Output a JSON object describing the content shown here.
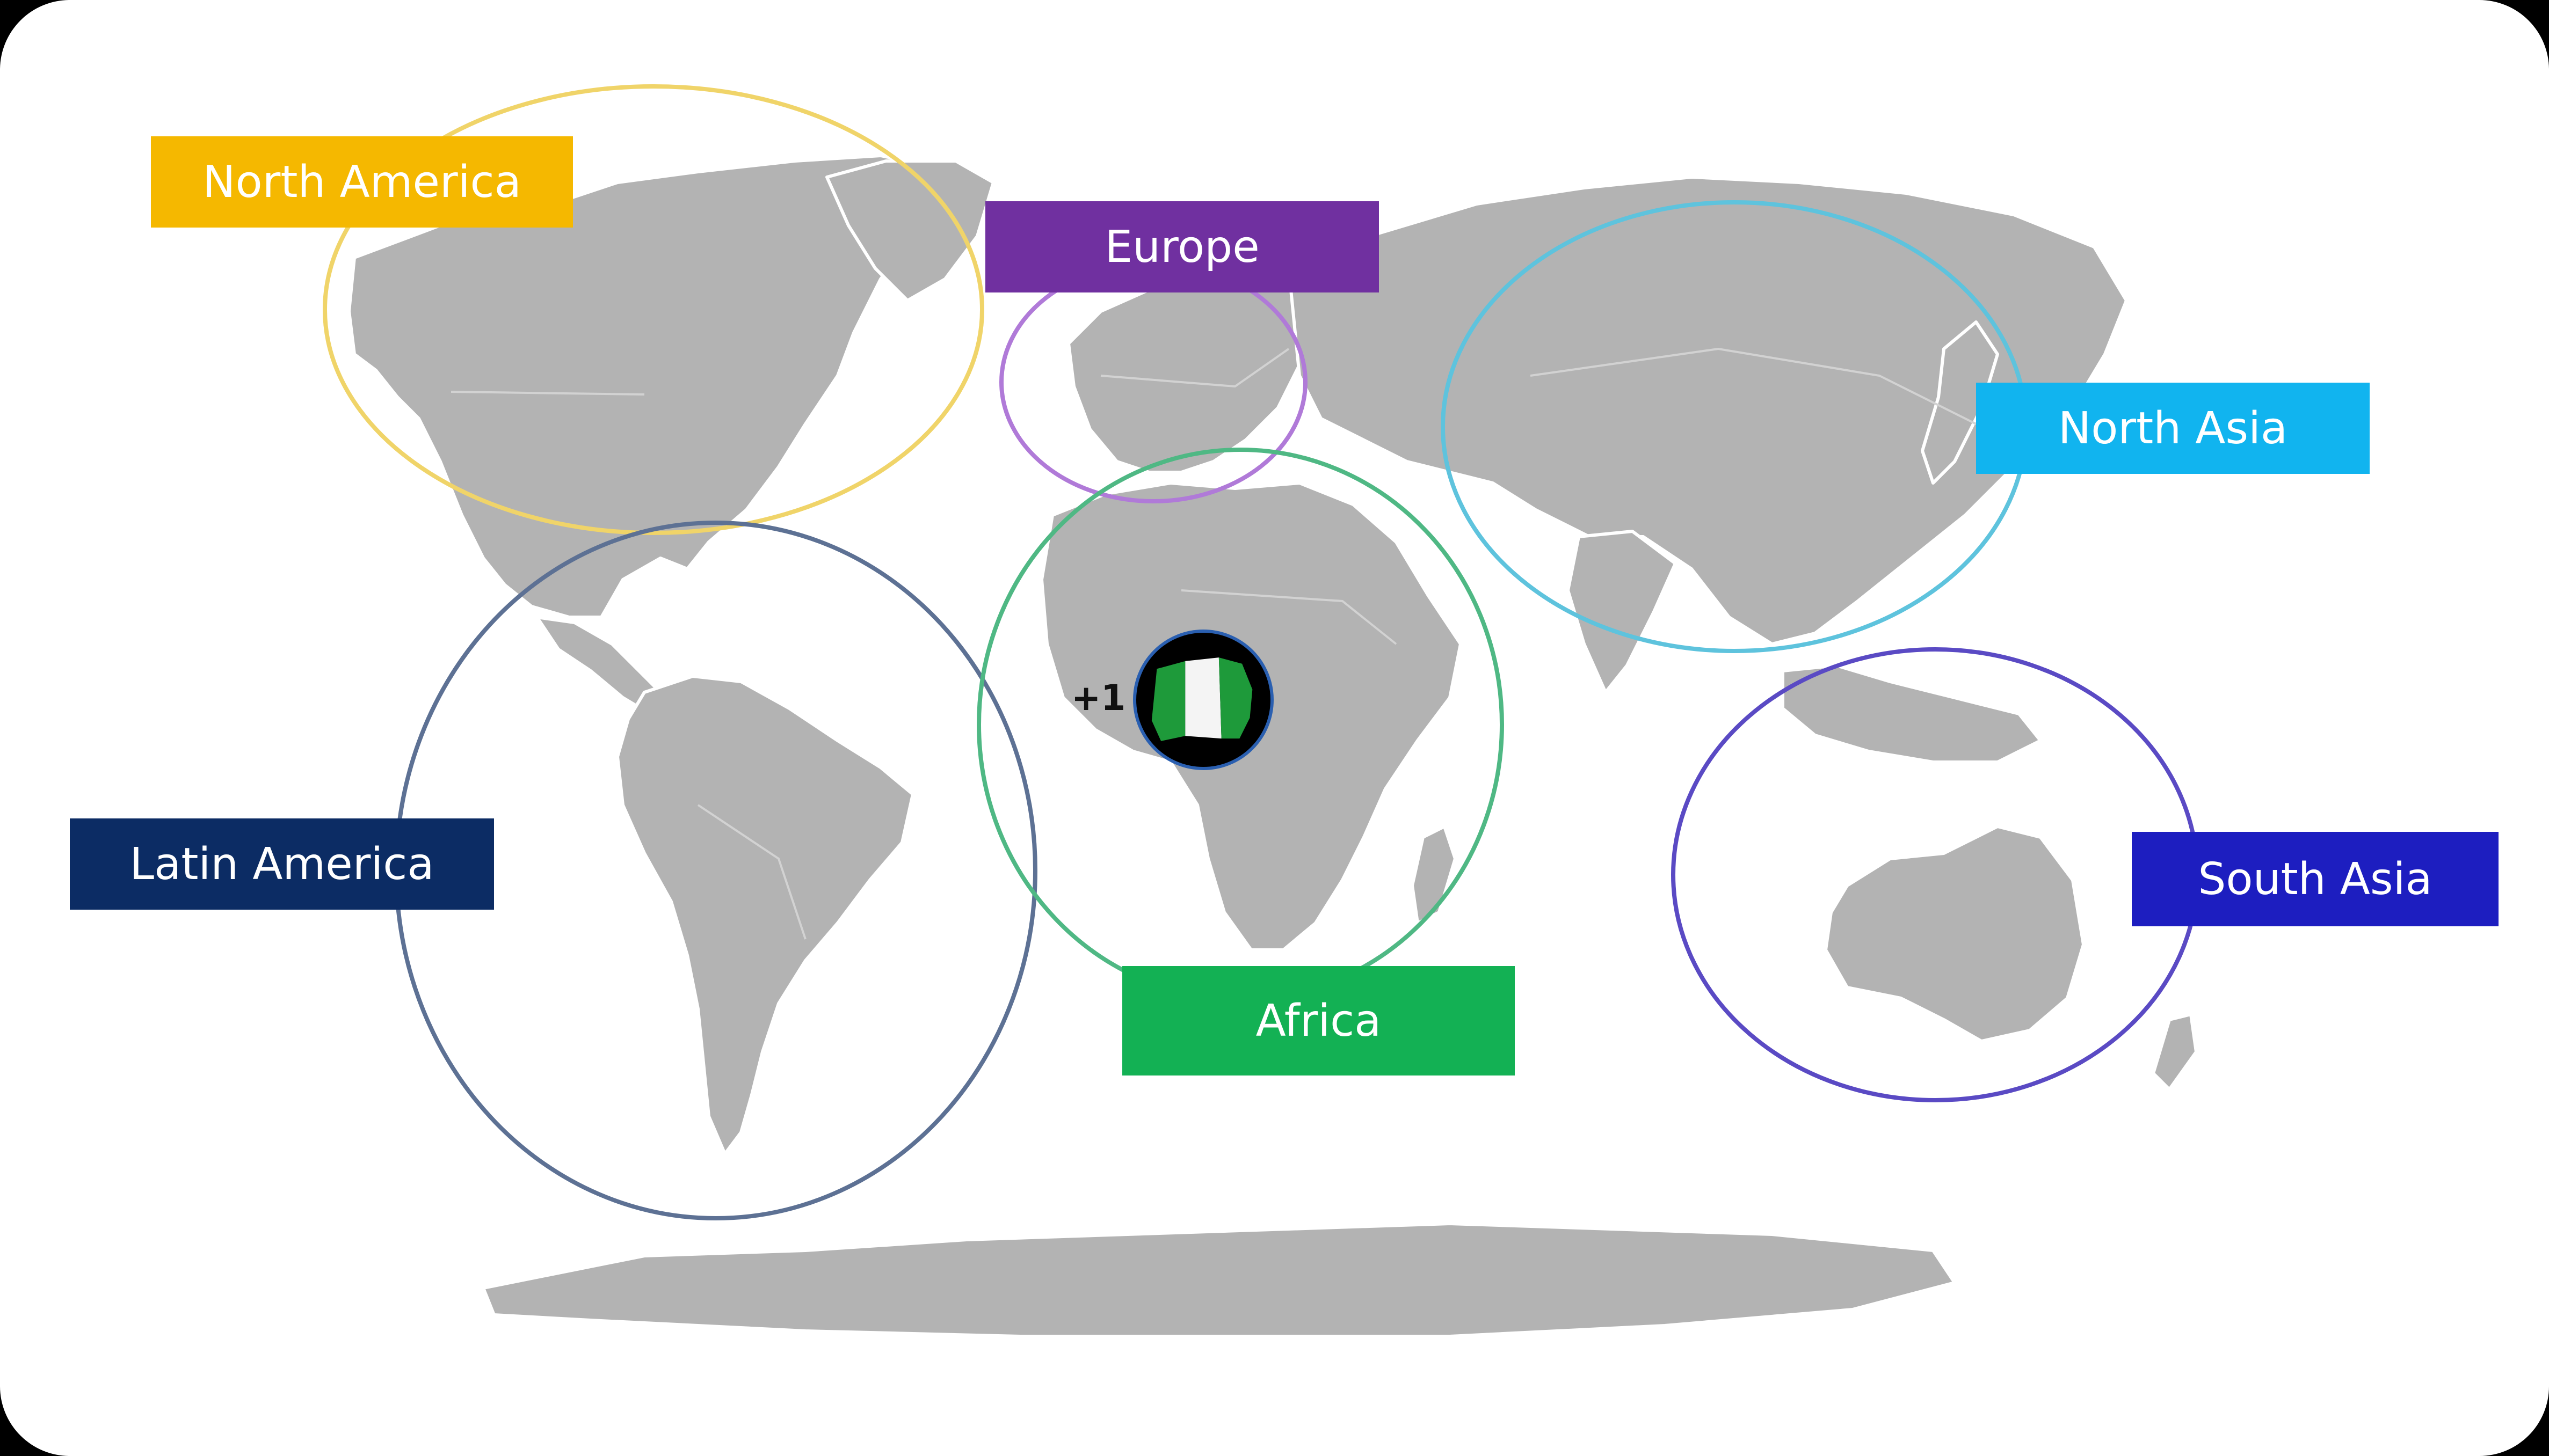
{
  "regions": {
    "north_america": {
      "label": "North America",
      "label_color": "#f5b800",
      "ring_color": "#f0d469"
    },
    "europe": {
      "label": "Europe",
      "label_color": "#7030a0",
      "ring_color": "#b07ad8"
    },
    "north_asia": {
      "label": "North Asia",
      "label_color": "#11b4ef",
      "ring_color": "#5ec3dd"
    },
    "latin_america": {
      "label": "Latin America",
      "label_color": "#0c2c64",
      "ring_color": "#5d7194"
    },
    "south_asia": {
      "label": "South Asia",
      "label_color": "#1d1ec0",
      "ring_color": "#5a4ac4"
    },
    "africa": {
      "label": "Africa",
      "label_color": "#13b154",
      "ring_color": "#4fb884"
    }
  },
  "marker": {
    "country_code": "+1",
    "flag_icon": "nigeria-flag-icon",
    "flag_colors": {
      "green": "#1e9a3a",
      "white": "#f4f4f4"
    }
  },
  "colors": {
    "land": "#b3b3b3",
    "ocean": "#ffffff"
  }
}
